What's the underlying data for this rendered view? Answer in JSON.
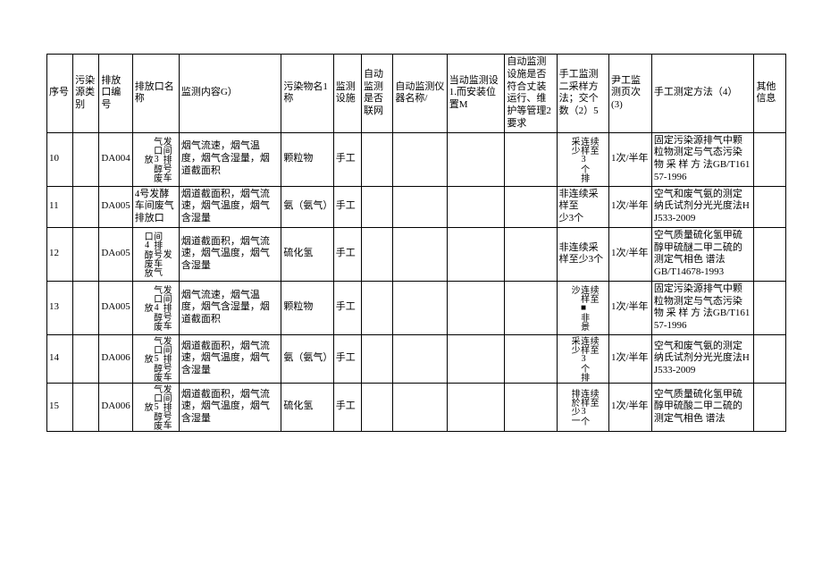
{
  "table": {
    "headers": {
      "seq": "序号",
      "cat": "污染源类别",
      "port": "排放口编号",
      "pname": "排放口名称",
      "mon": "监测内容G）",
      "poll": "污染物名1称",
      "fac": "监测设施",
      "net": "自动监测是否联网",
      "instr": "自动监测仪器名称/",
      "loc": "当动监测设1.而安装位置M",
      "maint": "自动监测设施是否符合丈装运行、维护等管理2要求",
      "samp": "手工监测二采样方法；交个数（2）5",
      "freq": "尹工监测页次(3)",
      "meth": "手工测定方法（4）",
      "other": "其他信息"
    },
    "rows": [
      {
        "seq": "10",
        "port": "DA004",
        "pname_lines": [
          "放",
          "气口3醇废",
          "发间排号车"
        ],
        "mon": "烟气流速，烟气温度，烟气含湿量，烟道截面积",
        "poll": "颗粒物",
        "fac": "手工",
        "samp_lines": [
          "采少",
          "连样3个排",
          "续至"
        ],
        "freq": "1次/半年",
        "meth": "固定污染源排气中颗粒物测定与气态污染物 采 样 方 法GB/T16157-1996"
      },
      {
        "seq": "11",
        "port": "DA005",
        "pname_plain": "4号发酵车间废气排放口",
        "mon": "烟道截面积，烟气流速，烟气温度，烟气含湿量",
        "poll": "氨（氨气）",
        "fac": "手工",
        "samp_plain": "非连续采样至\n少3个",
        "freq": "1次/半年",
        "meth": "空气和废气氨的测定纳氏试剂分光光度法HJ533-2009"
      },
      {
        "seq": "12",
        "port": "DAo05",
        "pname_lines": [
          "口4醇废放",
          "间排号车气",
          "发"
        ],
        "mon": "烟道截面积，烟气流速，烟气温度，烟气含湿量",
        "poll": "硫化氢",
        "fac": "手工",
        "samp_plain": "非连续采样至少3个",
        "freq": "1次/半年",
        "meth": "空气质量硫化氢甲硫醇甲硫醚二甲二硫的测定气相色    谱法\nGB/T14678-1993"
      },
      {
        "seq": "13",
        "port": "DA005",
        "pname_lines": [
          "放",
          "气口4醇废",
          "发间排号车"
        ],
        "mon": "烟气流速，烟气温度，烟气含湿量，烟道截面积",
        "poll": "颗粒物",
        "fac": "手工",
        "samp_lines": [
          "沙",
          "连样■非景",
          "续至"
        ],
        "freq": "1次/半年",
        "meth": "固定污染源排气中颗粒物测定与气态污染物 采 样 方 法GB/T16157-1996"
      },
      {
        "seq": "14",
        "port": "DA006",
        "pname_lines": [
          "放",
          "气口5醇废",
          "发间排号车"
        ],
        "mon": "烟道截面积，烟气流速，烟气温度，烟气含湿量",
        "poll": "氨（氨气）",
        "fac": "手工",
        "samp_lines": [
          "采少",
          "连样3个排",
          "续至"
        ],
        "freq": "1次/半年",
        "meth": "空气和废气氨的测定纳氏试剂分光光度法HJ533-2009"
      },
      {
        "seq": "15",
        "port": "DA006",
        "pname_lines": [
          "放",
          "气口5醇废",
          "发间排号车"
        ],
        "mon": "烟道截面积，烟气流速，烟气温度，烟气含湿量",
        "poll": "硫化氢",
        "fac": "手工",
        "samp_lines": [
          "排於少一",
          "连样3个",
          "续至"
        ],
        "freq": "1次/半年",
        "meth": "空气质量硫化氢甲硫醇甲硫酸二甲二硫的测定气相色    谱法"
      }
    ]
  }
}
